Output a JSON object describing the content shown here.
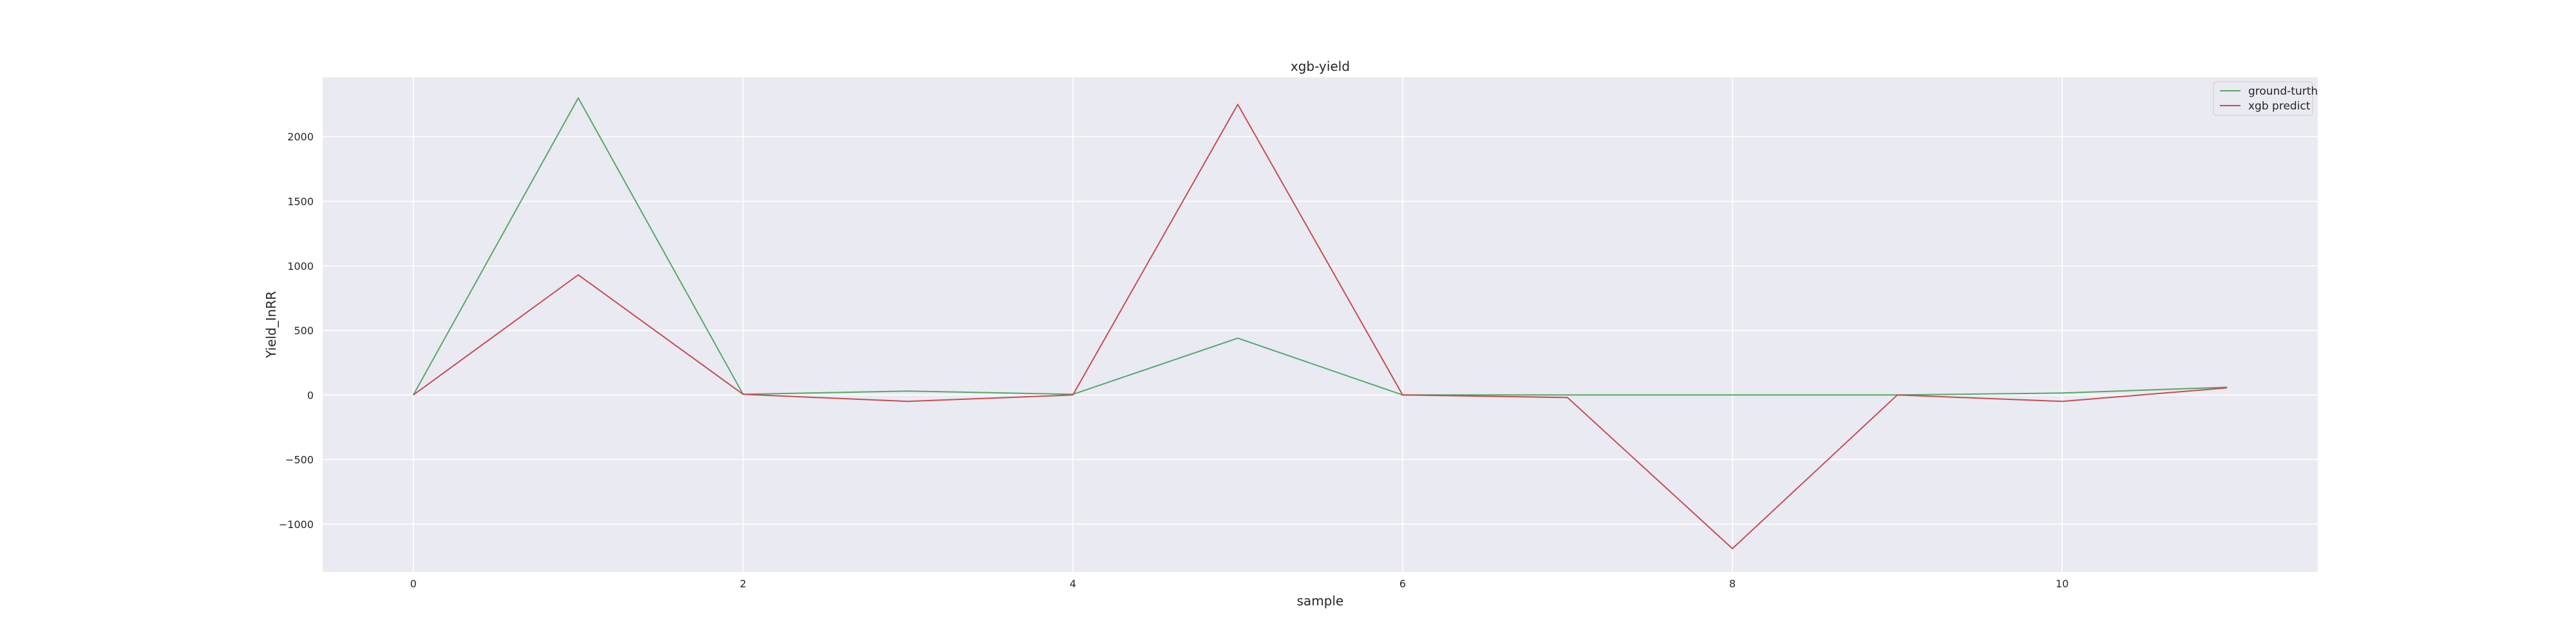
{
  "chart_data": {
    "type": "line",
    "title": "xgb-yield",
    "xlabel": "sample",
    "ylabel": "Yield_InRR",
    "x": [
      0,
      1,
      2,
      3,
      4,
      5,
      6,
      7,
      8,
      9,
      10,
      11
    ],
    "xlim": [
      -0.55,
      11.55
    ],
    "ylim": [
      -1370,
      2460
    ],
    "xticks": [
      0,
      2,
      4,
      6,
      8,
      10
    ],
    "yticks": [
      -1000,
      -500,
      0,
      500,
      1000,
      1500,
      2000
    ],
    "ytick_labels": [
      "−1000",
      "−500",
      "0",
      "500",
      "1000",
      "1500",
      "2000"
    ],
    "grid": true,
    "legend_position": "top-right",
    "background": "#eaeaf2",
    "series": [
      {
        "name": "ground-turth",
        "color": "#55a868",
        "values": [
          0,
          2300,
          5,
          30,
          5,
          440,
          0,
          0,
          0,
          0,
          15,
          60
        ]
      },
      {
        "name": "xgb predict",
        "color": "#c44e52",
        "values": [
          0,
          930,
          5,
          -50,
          0,
          2250,
          0,
          -20,
          -1190,
          0,
          -50,
          55
        ]
      }
    ]
  }
}
